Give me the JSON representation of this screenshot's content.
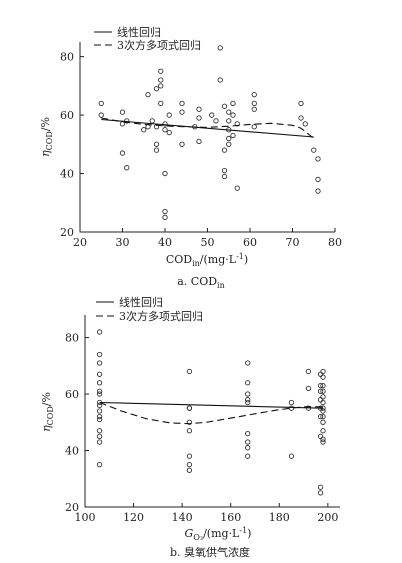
{
  "chart_data": [
    {
      "type": "scatter",
      "caption": "a. COD",
      "caption_sub": "in",
      "xlabel_main": "COD",
      "xlabel_sub": "in",
      "xlabel_unit": "/(mg·L",
      "xlabel_exp": "-1",
      "xlabel_close": ")",
      "ylabel_main": "η",
      "ylabel_sub": "COD",
      "ylabel_unit": "/%",
      "xlim": [
        20,
        80
      ],
      "ylim": [
        20,
        85
      ],
      "xticks": [
        20,
        30,
        40,
        50,
        60,
        70,
        80
      ],
      "yticks": [
        20,
        40,
        60,
        80
      ],
      "legend_position": "top-left",
      "legend": [
        "线性回归",
        "3次方多项式回归"
      ],
      "series": [
        {
          "kind": "points",
          "x": [
            25,
            25,
            30,
            30,
            30,
            31,
            31,
            35,
            36,
            36,
            37,
            38,
            38,
            38,
            38,
            39,
            39,
            39,
            39,
            40,
            40,
            40,
            40,
            40,
            41,
            41,
            44,
            44,
            44,
            47,
            48,
            48,
            48,
            51,
            52,
            53,
            53,
            54,
            54,
            54,
            54,
            55,
            55,
            55,
            55,
            55,
            56,
            56,
            56,
            57,
            57,
            61,
            61,
            61,
            61,
            72,
            72,
            73,
            75,
            76,
            76,
            76
          ],
          "y": [
            64,
            60,
            61,
            57,
            47,
            58,
            42,
            55,
            56,
            67,
            58,
            50,
            56,
            48,
            69,
            75,
            72,
            70,
            64,
            55,
            40,
            27,
            25,
            57,
            54,
            60,
            50,
            61,
            64,
            56,
            59,
            62,
            51,
            60,
            58,
            83,
            72,
            48,
            41,
            39,
            63,
            55,
            52,
            50,
            58,
            61,
            64,
            60,
            53,
            57,
            35,
            67,
            64,
            62,
            56,
            64,
            59,
            57,
            48,
            38,
            34,
            45
          ]
        },
        {
          "kind": "linear",
          "x": [
            25,
            75
          ],
          "y": [
            58.5,
            52.5
          ]
        },
        {
          "kind": "cubic",
          "x": [
            25,
            30,
            35,
            40,
            45,
            50,
            55,
            60,
            65,
            70,
            72,
            75
          ],
          "y": [
            59,
            57.7,
            56.8,
            56.3,
            56,
            55.8,
            56.2,
            56.8,
            57.2,
            56.5,
            55.5,
            52
          ]
        }
      ]
    },
    {
      "type": "scatter",
      "caption": "b. 臭氧供气浓度",
      "xlabel_main": "G",
      "xlabel_sub": "O₃",
      "xlabel_unit": "/(mg·L",
      "xlabel_exp": "-1",
      "xlabel_close": ")",
      "ylabel_main": "η",
      "ylabel_sub": "COD",
      "ylabel_unit": "/%",
      "xlim": [
        100,
        205
      ],
      "ylim": [
        20,
        88
      ],
      "xticks": [
        100,
        120,
        140,
        160,
        180,
        200
      ],
      "yticks": [
        20,
        40,
        60,
        80
      ],
      "legend_position": "top-left",
      "legend": [
        "线性回归",
        "3次方多项式回归"
      ],
      "series": [
        {
          "kind": "points",
          "x": [
            106,
            106,
            106,
            106,
            106,
            106,
            106,
            106,
            106,
            106,
            106,
            106,
            106,
            106,
            106,
            106,
            143,
            143,
            143,
            143,
            143,
            143,
            143,
            143,
            167,
            167,
            167,
            167,
            167,
            167,
            167,
            167,
            167,
            185,
            185,
            185,
            192,
            192,
            192,
            197,
            197,
            197,
            197,
            197,
            197,
            197,
            197,
            197,
            198,
            198,
            198,
            198,
            198,
            198,
            198,
            198,
            198,
            198,
            198,
            198,
            198
          ],
          "y": [
            82,
            74,
            71,
            67,
            64,
            61,
            60,
            56,
            54,
            52,
            51,
            47,
            45,
            43,
            35,
            57,
            68,
            55,
            50,
            47,
            38,
            35,
            33,
            55,
            71,
            64,
            60,
            58,
            57,
            46,
            43,
            41,
            38,
            57,
            55,
            38,
            68,
            62,
            55,
            67,
            63,
            61,
            58,
            55,
            52,
            27,
            25,
            45,
            68,
            66,
            63,
            61,
            59,
            57,
            55,
            54,
            52,
            50,
            47,
            44,
            43
          ]
        },
        {
          "kind": "linear",
          "x": [
            106,
            198
          ],
          "y": [
            57,
            55
          ]
        },
        {
          "kind": "cubic",
          "x": [
            106,
            115,
            125,
            135,
            143,
            150,
            160,
            170,
            180,
            190,
            198
          ],
          "y": [
            57,
            54,
            51.3,
            49.8,
            49.5,
            50,
            51.5,
            53,
            54.5,
            55.5,
            55.5
          ]
        }
      ]
    }
  ]
}
